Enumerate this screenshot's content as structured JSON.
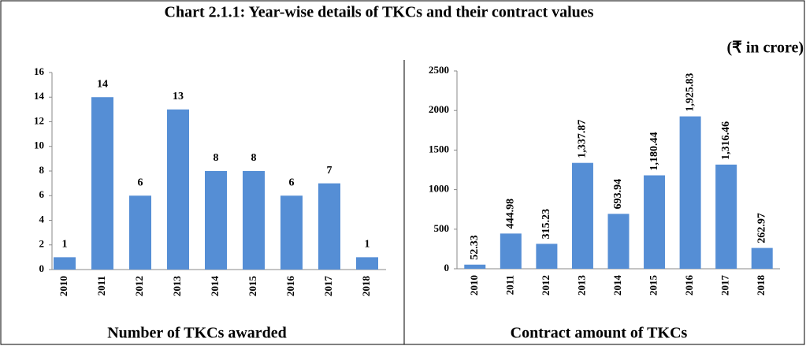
{
  "title": "Chart 2.1.1: Year-wise details of TKCs and their contract values",
  "note": "(₹ in crore)",
  "chart_data": [
    {
      "type": "bar",
      "xlabel": "Number of TKCs awarded",
      "categories": [
        "2010",
        "2011",
        "2012",
        "2013",
        "2014",
        "2015",
        "2016",
        "2017",
        "2018"
      ],
      "values": [
        1,
        14,
        6,
        13,
        8,
        8,
        6,
        7,
        1
      ],
      "color": "#558ed5",
      "ylim": [
        0,
        16
      ],
      "yticks": [
        0,
        2,
        4,
        6,
        8,
        10,
        12,
        14,
        16
      ]
    },
    {
      "type": "bar",
      "xlabel": "Contract amount of TKCs",
      "categories": [
        "2010",
        "2011",
        "2012",
        "2013",
        "2014",
        "2015",
        "2016",
        "2017",
        "2018"
      ],
      "values": [
        52.33,
        444.98,
        315.23,
        1337.87,
        693.94,
        1180.44,
        1925.83,
        1316.46,
        262.97
      ],
      "value_labels": [
        "52.33",
        "444.98",
        "315.23",
        "1,337.87",
        "693.94",
        "1,180.44",
        "1,925.83",
        "1,316.46",
        "262.97"
      ],
      "color": "#558ed5",
      "ylim": [
        0,
        2500
      ],
      "yticks": [
        0,
        500,
        1000,
        1500,
        2000,
        2500
      ]
    }
  ]
}
